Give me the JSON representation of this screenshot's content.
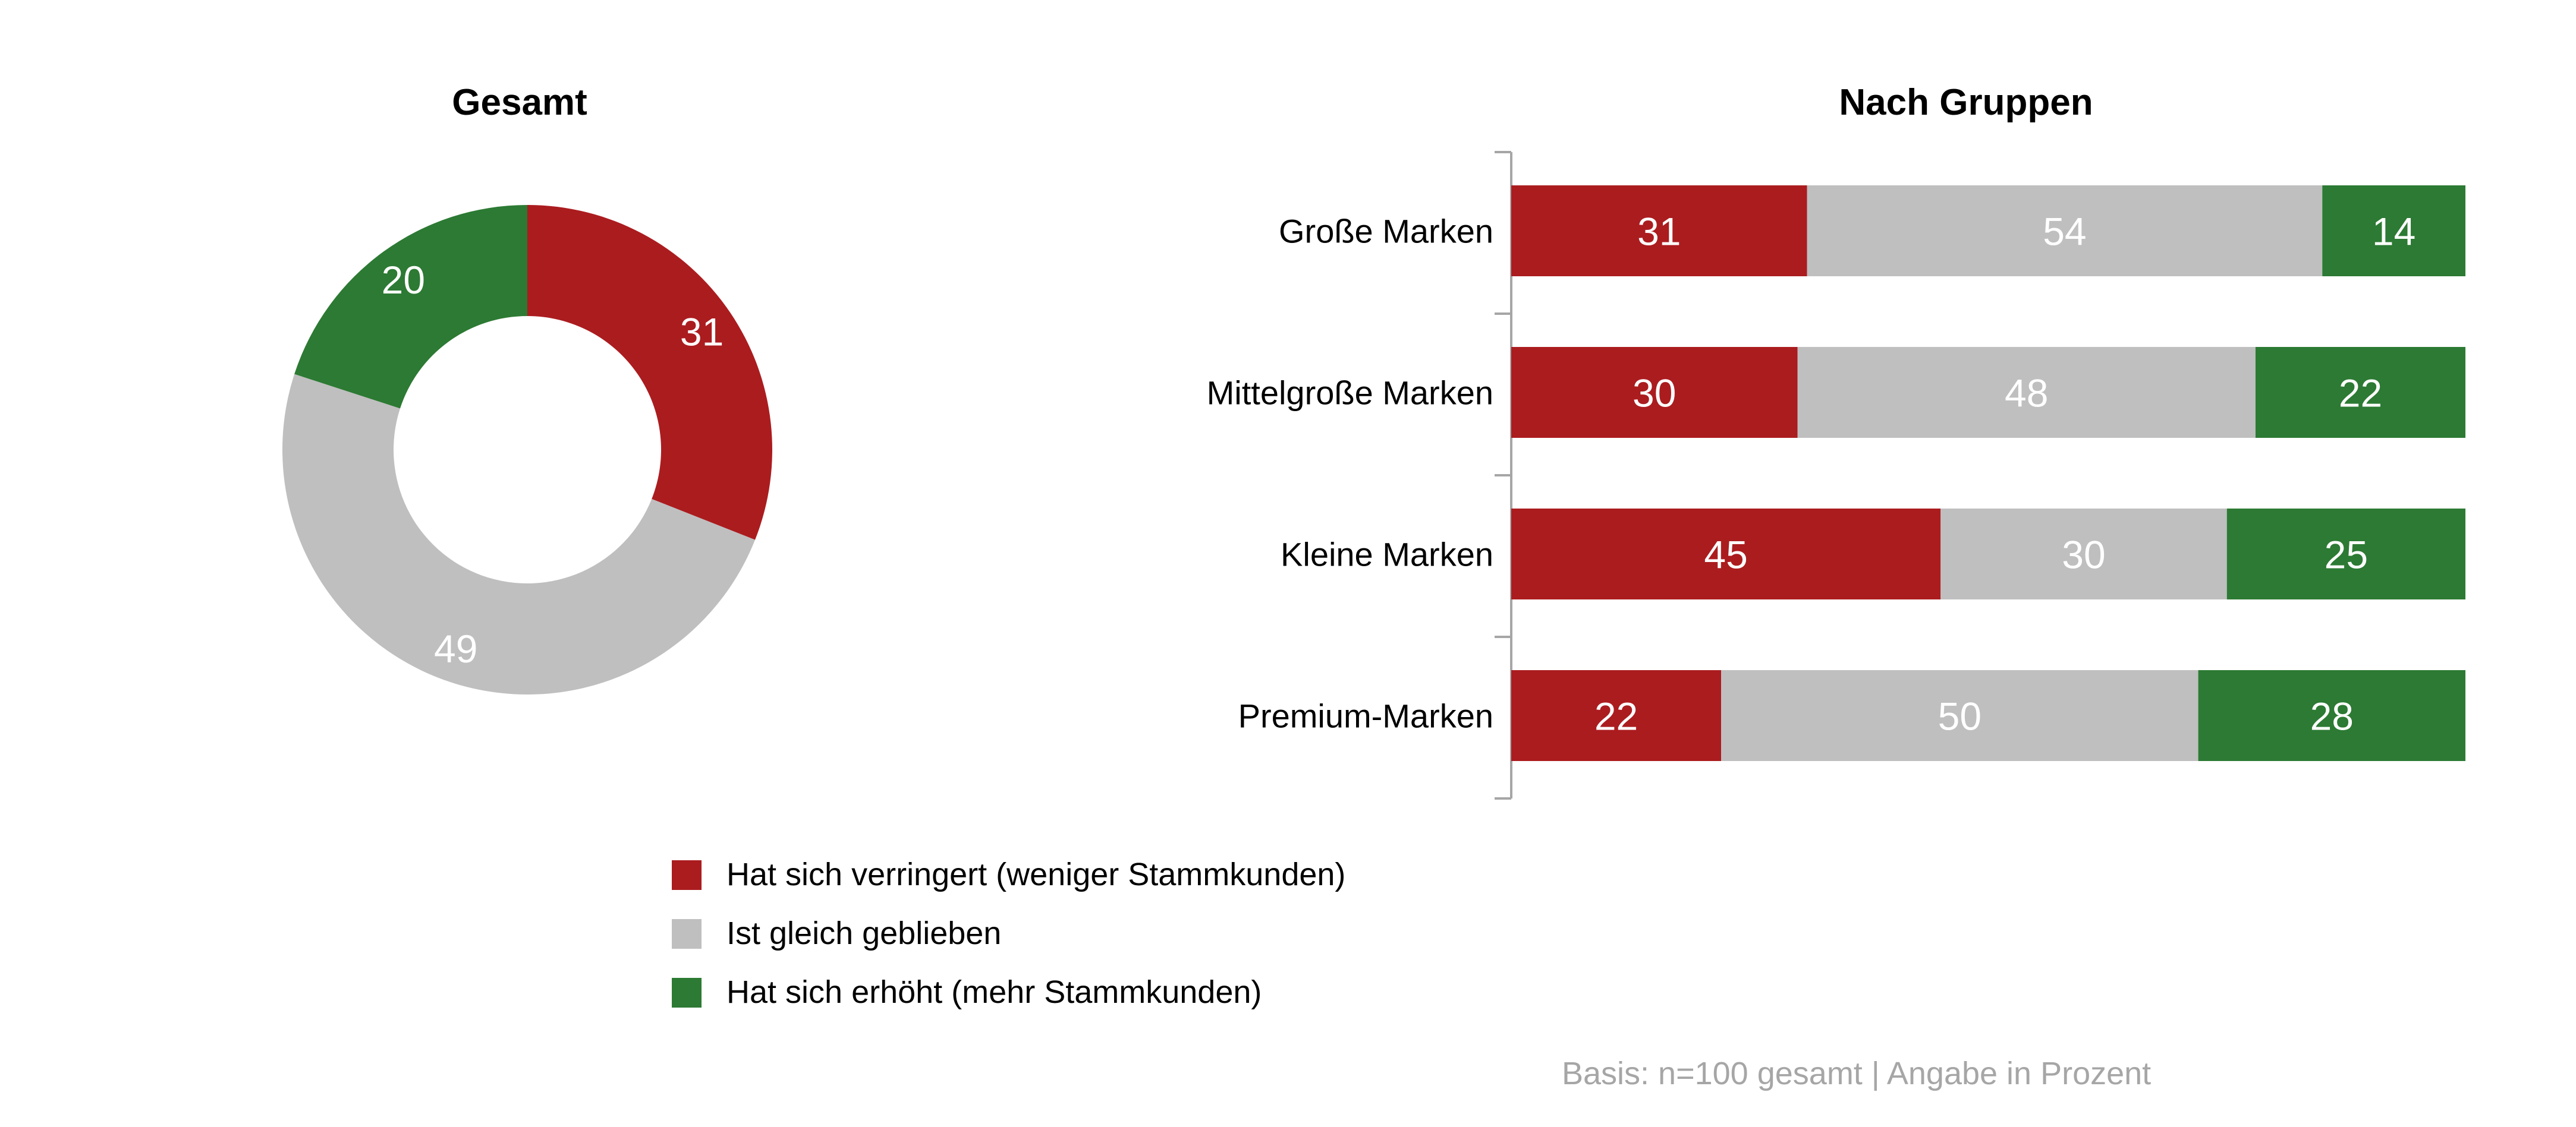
{
  "colors": {
    "decreased": "#ab1c1f",
    "same": "#bfbfbf",
    "increased": "#2c7a33",
    "axis": "#a6a6a6",
    "footnote": "#a6a6a6"
  },
  "legend": [
    {
      "key": "decreased",
      "label": "Hat sich verringert (weniger Stammkunden)"
    },
    {
      "key": "same",
      "label": "Ist gleich geblieben"
    },
    {
      "key": "increased",
      "label": "Hat sich erhöht (mehr Stammkunden)"
    }
  ],
  "footnote": "Basis: n=100 gesamt | Angabe in Prozent",
  "chart_data": [
    {
      "type": "pie",
      "variant": "donut",
      "title": "Gesamt",
      "slices": [
        {
          "key": "decreased",
          "value": 31
        },
        {
          "key": "same",
          "value": 49
        },
        {
          "key": "increased",
          "value": 20
        }
      ]
    },
    {
      "type": "bar",
      "orientation": "horizontal",
      "stacked": true,
      "title": "Nach Gruppen",
      "categories": [
        "Große Marken",
        "Mittelgroße Marken",
        "Kleine Marken",
        "Premium-Marken"
      ],
      "series": [
        {
          "key": "decreased",
          "values": [
            31,
            30,
            45,
            22
          ]
        },
        {
          "key": "same",
          "values": [
            54,
            48,
            30,
            50
          ]
        },
        {
          "key": "increased",
          "values": [
            14,
            22,
            25,
            28
          ]
        }
      ],
      "xlim": [
        0,
        100
      ]
    }
  ]
}
